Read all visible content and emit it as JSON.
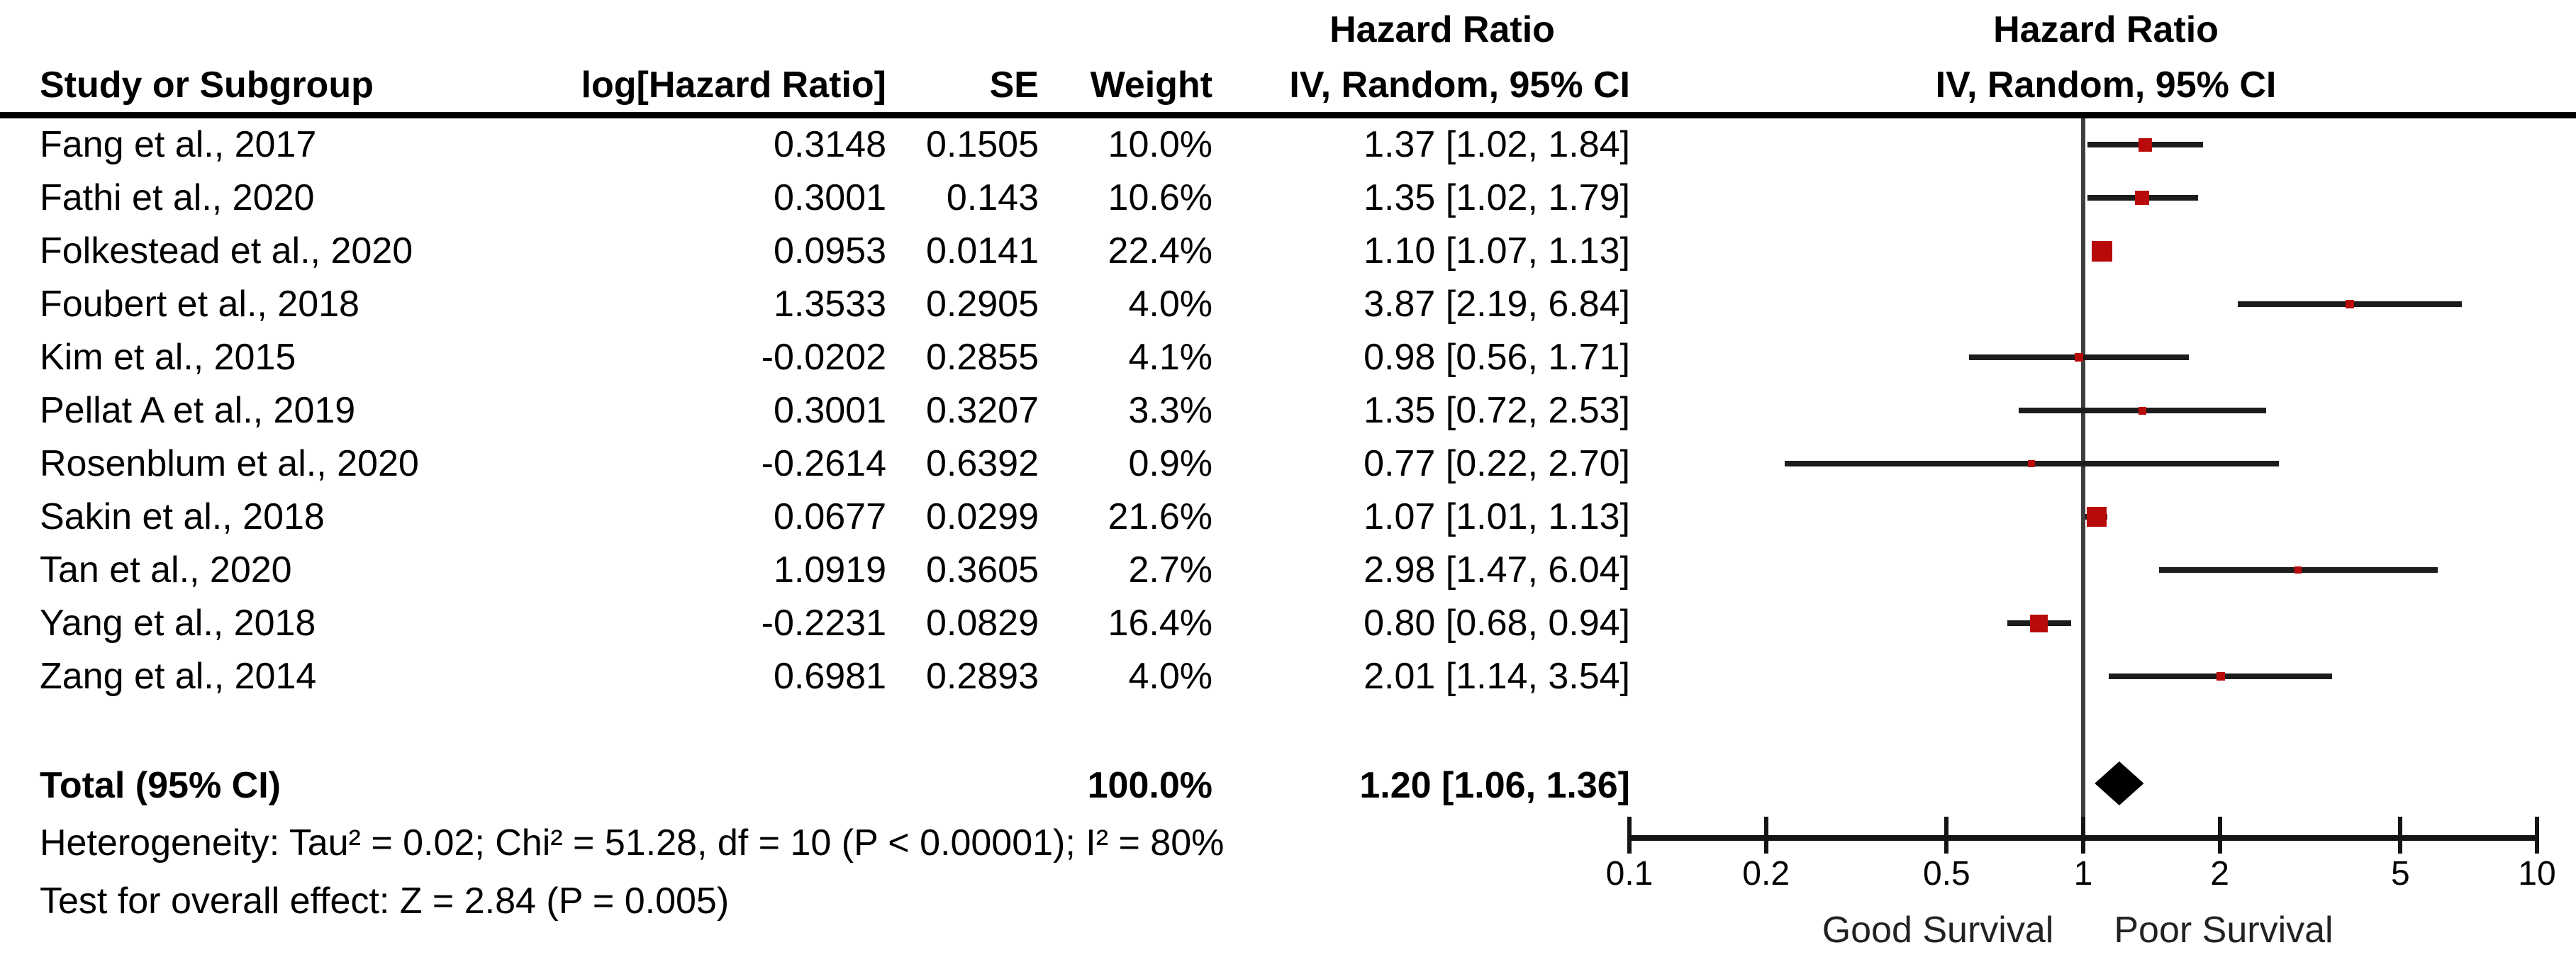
{
  "chart_data": {
    "type": "scatter",
    "subtype": "forest_plot",
    "effect_measure": "Hazard Ratio",
    "model_label": "IV, Random, 95% CI",
    "x_scale": "log10",
    "x_ticks": [
      0.1,
      0.2,
      0.5,
      1,
      2,
      5,
      10
    ],
    "x_tick_labels": [
      "0.1",
      "0.2",
      "0.5",
      "1",
      "2",
      "5",
      "10"
    ],
    "x_range": [
      0.1,
      10
    ],
    "axis_left_label": "Good Survival",
    "axis_right_label": "Poor Survival",
    "grid": "off",
    "studies": [
      {
        "name": "Fang et al., 2017",
        "log_hr": "0.3148",
        "se": "0.1505",
        "weight_label": "10.0%",
        "weight_pct": 10.0,
        "ci_label": "1.37 [1.02, 1.84]",
        "hr": 1.37,
        "ci_low": 1.02,
        "ci_high": 1.84
      },
      {
        "name": "Fathi et al., 2020",
        "log_hr": "0.3001",
        "se": "0.143",
        "weight_label": "10.6%",
        "weight_pct": 10.6,
        "ci_label": "1.35 [1.02, 1.79]",
        "hr": 1.35,
        "ci_low": 1.02,
        "ci_high": 1.79
      },
      {
        "name": "Folkestead et al., 2020",
        "log_hr": "0.0953",
        "se": "0.0141",
        "weight_label": "22.4%",
        "weight_pct": 22.4,
        "ci_label": "1.10 [1.07, 1.13]",
        "hr": 1.1,
        "ci_low": 1.07,
        "ci_high": 1.13
      },
      {
        "name": "Foubert et al., 2018",
        "log_hr": "1.3533",
        "se": "0.2905",
        "weight_label": "4.0%",
        "weight_pct": 4.0,
        "ci_label": "3.87 [2.19, 6.84]",
        "hr": 3.87,
        "ci_low": 2.19,
        "ci_high": 6.84
      },
      {
        "name": "Kim et al., 2015",
        "log_hr": "-0.0202",
        "se": "0.2855",
        "weight_label": "4.1%",
        "weight_pct": 4.1,
        "ci_label": "0.98 [0.56, 1.71]",
        "hr": 0.98,
        "ci_low": 0.56,
        "ci_high": 1.71
      },
      {
        "name": "Pellat A et al., 2019",
        "log_hr": "0.3001",
        "se": "0.3207",
        "weight_label": "3.3%",
        "weight_pct": 3.3,
        "ci_label": "1.35 [0.72, 2.53]",
        "hr": 1.35,
        "ci_low": 0.72,
        "ci_high": 2.53
      },
      {
        "name": "Rosenblum et al., 2020",
        "log_hr": "-0.2614",
        "se": "0.6392",
        "weight_label": "0.9%",
        "weight_pct": 0.9,
        "ci_label": "0.77 [0.22, 2.70]",
        "hr": 0.77,
        "ci_low": 0.22,
        "ci_high": 2.7
      },
      {
        "name": "Sakin et al., 2018",
        "log_hr": "0.0677",
        "se": "0.0299",
        "weight_label": "21.6%",
        "weight_pct": 21.6,
        "ci_label": "1.07 [1.01, 1.13]",
        "hr": 1.07,
        "ci_low": 1.01,
        "ci_high": 1.13
      },
      {
        "name": "Tan et al., 2020",
        "log_hr": "1.0919",
        "se": "0.3605",
        "weight_label": "2.7%",
        "weight_pct": 2.7,
        "ci_label": "2.98 [1.47, 6.04]",
        "hr": 2.98,
        "ci_low": 1.47,
        "ci_high": 6.04
      },
      {
        "name": "Yang et al., 2018",
        "log_hr": "-0.2231",
        "se": "0.0829",
        "weight_label": "16.4%",
        "weight_pct": 16.4,
        "ci_label": "0.80 [0.68, 0.94]",
        "hr": 0.8,
        "ci_low": 0.68,
        "ci_high": 0.94
      },
      {
        "name": "Zang et al., 2014",
        "log_hr": "0.6981",
        "se": "0.2893",
        "weight_label": "4.0%",
        "weight_pct": 4.0,
        "ci_label": "2.01 [1.14, 3.54]",
        "hr": 2.01,
        "ci_low": 1.14,
        "ci_high": 3.54
      }
    ],
    "total": {
      "label": "Total (95% CI)",
      "weight_label": "100.0%",
      "ci_label": "1.20 [1.06, 1.36]",
      "hr": 1.2,
      "ci_low": 1.06,
      "ci_high": 1.36
    },
    "footer": {
      "heterogeneity": "Heterogeneity: Tau² = 0.02; Chi² = 51.28, df = 10 (P < 0.00001); I² = 80%",
      "overall_effect": "Test for overall effect: Z = 2.84 (P = 0.005)"
    }
  },
  "columns": {
    "study": "Study or Subgroup",
    "log_hr": "log[Hazard Ratio]",
    "se": "SE",
    "weight": "Weight",
    "ci": "IV, Random, 95% CI"
  },
  "headers": {
    "table_effect": "Hazard Ratio",
    "table_method": "IV, Random, 95% CI",
    "plot_effect": "Hazard Ratio",
    "plot_method": "IV, Random, 95% CI"
  },
  "colors": {
    "marker": "#b80a0a",
    "ci_line": "#1c1c1c",
    "center_line": "#3f3f3f",
    "axis": "#141414",
    "diamond": "#000000",
    "text": "#000000",
    "background": "#ffffff"
  }
}
